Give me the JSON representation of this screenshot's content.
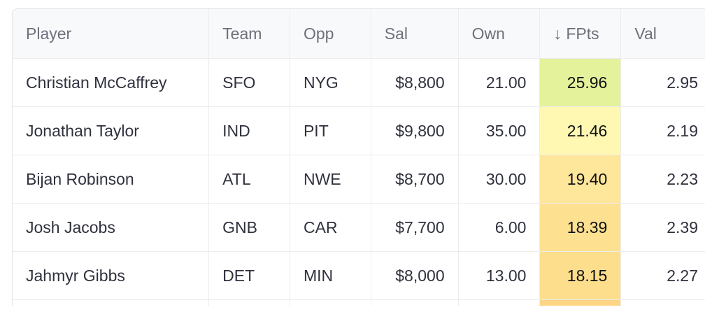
{
  "table": {
    "columns": [
      "Player",
      "Team",
      "Opp",
      "Sal",
      "Own",
      "↓ FPts",
      "Val"
    ],
    "sort": {
      "column": "FPts",
      "direction": "descending",
      "icon": "arrow-down-icon"
    },
    "rows": [
      {
        "player": "Christian McCaffrey",
        "team": "SFO",
        "opp": "NYG",
        "sal": "$8,800",
        "own": "21.00",
        "fpts": "25.96",
        "val": "2.95",
        "fpts_color": "#e3f29b"
      },
      {
        "player": "Jonathan Taylor",
        "team": "IND",
        "opp": "PIT",
        "sal": "$9,800",
        "own": "35.00",
        "fpts": "21.46",
        "val": "2.19",
        "fpts_color": "#fef8b2"
      },
      {
        "player": "Bijan Robinson",
        "team": "ATL",
        "opp": "NWE",
        "sal": "$8,700",
        "own": "30.00",
        "fpts": "19.40",
        "val": "2.23",
        "fpts_color": "#fee69b"
      },
      {
        "player": "Josh Jacobs",
        "team": "GNB",
        "opp": "CAR",
        "sal": "$7,700",
        "own": "6.00",
        "fpts": "18.39",
        "val": "2.39",
        "fpts_color": "#fde191"
      },
      {
        "player": "Jahmyr Gibbs",
        "team": "DET",
        "opp": "MIN",
        "sal": "$8,000",
        "own": "13.00",
        "fpts": "18.15",
        "val": "2.27",
        "fpts_color": "#fdde8c"
      }
    ],
    "partial_row_fpts_color": "#fdd585"
  }
}
